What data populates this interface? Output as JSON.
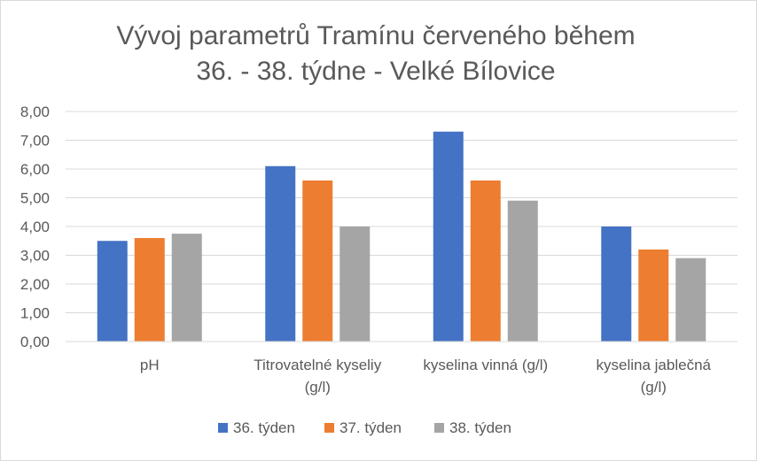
{
  "chart_data": {
    "type": "bar",
    "title_lines": [
      "Vývoj parametrů Tramínu červeného během",
      "36. - 38. týdne - Velké Bílovice"
    ],
    "categories": [
      [
        "pH"
      ],
      [
        "Titrovatelné kyseliy",
        "(g/l)"
      ],
      [
        "kyselina vinná (g/l)"
      ],
      [
        "kyselina jablečná",
        "(g/l)"
      ]
    ],
    "series": [
      {
        "name": "36. týden",
        "color": "#4472C4",
        "values": [
          3.5,
          6.1,
          7.3,
          4.0
        ]
      },
      {
        "name": "37. týden",
        "color": "#ED7D31",
        "values": [
          3.6,
          5.6,
          5.6,
          3.2
        ]
      },
      {
        "name": "38. týden",
        "color": "#A5A5A5",
        "values": [
          3.75,
          4.0,
          4.9,
          2.9
        ]
      }
    ],
    "y_ticks": [
      "0,00",
      "1,00",
      "2,00",
      "3,00",
      "4,00",
      "5,00",
      "6,00",
      "7,00",
      "8,00"
    ],
    "ylim": [
      0,
      8
    ],
    "grid": true,
    "legend_position": "bottom"
  }
}
